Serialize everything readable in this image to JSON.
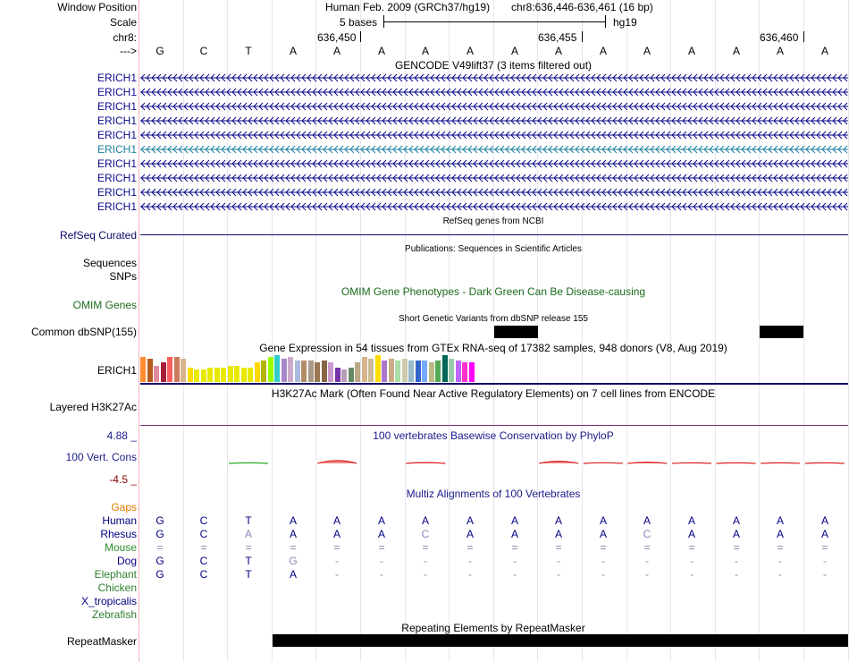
{
  "labels": {
    "window_position": "Window Position",
    "scale": "Scale",
    "chr": "chr8:",
    "strand": "--->",
    "refseq": "RefSeq Curated",
    "sequences": "Sequences",
    "snps": "SNPs",
    "omim": "OMIM Genes",
    "dbsnp": "Common dbSNP(155)",
    "gtex_gene": "ERICH1",
    "h3k27ac": "Layered H3K27Ac",
    "cons_max": "4.88 _",
    "cons_label": "100 Vert. Cons",
    "cons_min": "-4.5 _",
    "gaps": "Gaps",
    "repeatmasker": "RepeatMasker"
  },
  "header": {
    "assembly": "Human Feb. 2009 (GRCh37/hg19)",
    "position": "chr8:636,446-636,461 (16 bp)",
    "scale_text": "5 bases",
    "scale_db": "hg19",
    "coords": [
      "636,450",
      "636,455",
      "636,460"
    ]
  },
  "bases": [
    "G",
    "C",
    "T",
    "A",
    "A",
    "A",
    "A",
    "A",
    "A",
    "A",
    "A",
    "A",
    "A",
    "A",
    "A",
    "A"
  ],
  "track_titles": {
    "gencode": "GENCODE V49lift37 (3 items filtered out)",
    "refseq": "RefSeq genes from NCBI",
    "publications": "Publications: Sequences in Scientific Articles",
    "omim": "OMIM Gene Phenotypes - Dark Green Can Be Disease-causing",
    "dbsnp": "Short Genetic Variants from dbSNP release 155",
    "gtex": "Gene Expression in 54 tissues from GTEx RNA-seq of 17382 samples, 948 donors (V8, Aug 2019)",
    "h3k27ac": "H3K27Ac Mark (Often Found Near Active Regulatory Elements) on 7 cell lines from ENCODE",
    "phylop": "100 vertebrates Basewise Conservation by PhyloP",
    "multiz": "Multiz Alignments of 100 Vertebrates",
    "repeatmasker": "Repeating Elements by RepeatMasker"
  },
  "gencode_genes": [
    {
      "name": "ERICH1",
      "color": "#0a0a8c"
    },
    {
      "name": "ERICH1",
      "color": "#0a0a8c"
    },
    {
      "name": "ERICH1",
      "color": "#0a0a8c"
    },
    {
      "name": "ERICH1",
      "color": "#0a0a8c"
    },
    {
      "name": "ERICH1",
      "color": "#0a0a8c"
    },
    {
      "name": "ERICH1",
      "color": "#1a7f9f"
    },
    {
      "name": "ERICH1",
      "color": "#0a0a8c"
    },
    {
      "name": "ERICH1",
      "color": "#0a0a8c"
    },
    {
      "name": "ERICH1",
      "color": "#0a0a8c"
    },
    {
      "name": "ERICH1",
      "color": "#0a0a8c"
    }
  ],
  "gtex_colors": [
    "#ff8c2e",
    "#b85c1e",
    "#e08ca0",
    "#a61e3c",
    "#ff5e5e",
    "#cc7a5c",
    "#d9b38c",
    "#ffdd00",
    "#e8e800",
    "#e8e800",
    "#e8e800",
    "#e8e800",
    "#e8e800",
    "#e8e800",
    "#e8e800",
    "#e8e800",
    "#e8e800",
    "#ffd700",
    "#b3b300",
    "#99ff00",
    "#33cccc",
    "#aa88cc",
    "#ccaacc",
    "#aabbdd",
    "#b38c66",
    "#aa9988",
    "#997755",
    "#886644",
    "#cc99cc",
    "#7733aa",
    "#bb99bb",
    "#668866",
    "#bbaa88",
    "#d9b38c",
    "#ccbb99",
    "#ffdd00",
    "#aa77cc",
    "#ccaa88",
    "#aaddaa",
    "#ccccaa",
    "#99bbcc",
    "#3366cc",
    "#77aaff",
    "#bbbb88",
    "#55aa55",
    "#006655",
    "#99ccaa",
    "#bb66ff",
    "#ff33cc",
    "#ff00ff"
  ],
  "phylop_values": [
    0,
    0,
    0.3,
    0,
    1.6,
    0,
    0.5,
    0,
    0,
    1.2,
    0.4,
    0.7,
    0.3,
    0.3,
    0.3,
    0.3
  ],
  "multiz": [
    {
      "species": "Human",
      "color": "#000080",
      "seq": [
        "G",
        "C",
        "T",
        "A",
        "A",
        "A",
        "A",
        "A",
        "A",
        "A",
        "A",
        "A",
        "A",
        "A",
        "A",
        "A"
      ]
    },
    {
      "species": "Rhesus",
      "color": "#000080",
      "seq": [
        "G",
        "C",
        "A",
        "A",
        "A",
        "A",
        "C",
        "A",
        "A",
        "A",
        "A",
        "C",
        "A",
        "A",
        "A",
        "A"
      ]
    },
    {
      "species": "Mouse",
      "color": "#2e8b2e",
      "seq": [
        "=",
        "=",
        "=",
        "=",
        "=",
        "=",
        "=",
        "=",
        "=",
        "=",
        "=",
        "=",
        "=",
        "=",
        "=",
        "="
      ]
    },
    {
      "species": "Dog",
      "color": "#000080",
      "seq": [
        "G",
        "C",
        "T",
        "G",
        "-",
        "-",
        "-",
        "-",
        "-",
        "-",
        "-",
        "-",
        "-",
        "-",
        "-",
        "-"
      ]
    },
    {
      "species": "Elephant",
      "color": "#2e7d2e",
      "seq": [
        "G",
        "C",
        "T",
        "A",
        "-",
        "-",
        "-",
        "-",
        "-",
        "-",
        "-",
        "-",
        "-",
        "-",
        "-",
        "-"
      ]
    },
    {
      "species": "Chicken",
      "color": "#2e7d2e",
      "seq": []
    },
    {
      "species": "X_tropicalis",
      "color": "#000080",
      "seq": []
    },
    {
      "species": "Zebrafish",
      "color": "#2e7d2e",
      "seq": []
    }
  ],
  "colors": {
    "gaps": "#e07b00",
    "omim": "#1b6b1b",
    "phylop": "#1a1a8a",
    "repeat": "#000000",
    "refseq": "#0a0a6b"
  }
}
